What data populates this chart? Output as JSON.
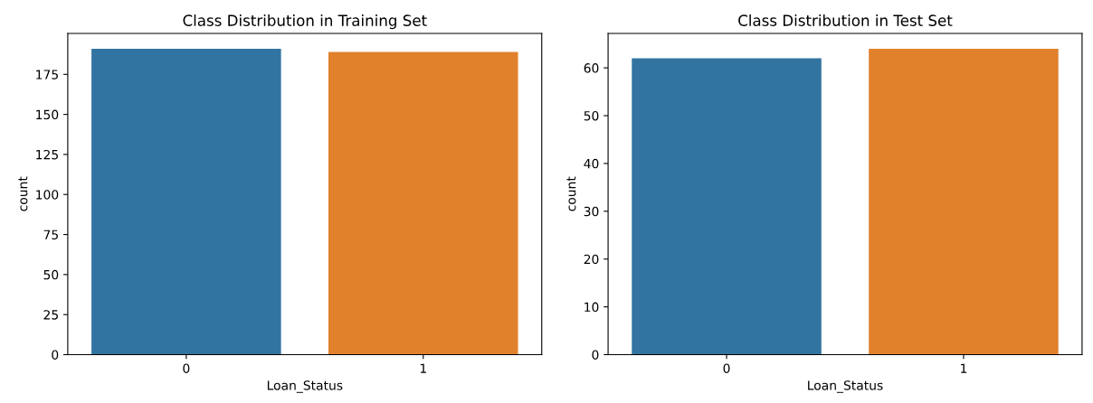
{
  "chart_data": [
    {
      "type": "bar",
      "title": "Class Distribution in Training Set",
      "xlabel": "Loan_Status",
      "ylabel": "count",
      "categories": [
        "0",
        "1"
      ],
      "values": [
        191,
        189
      ],
      "colors": [
        "#3274a1",
        "#e1812c"
      ],
      "ylim": [
        0,
        200.55
      ],
      "yticks": [
        0,
        25,
        50,
        75,
        100,
        125,
        150,
        175
      ]
    },
    {
      "type": "bar",
      "title": "Class Distribution in Test Set",
      "xlabel": "Loan_Status",
      "ylabel": "count",
      "categories": [
        "0",
        "1"
      ],
      "values": [
        62,
        64
      ],
      "colors": [
        "#3274a1",
        "#e1812c"
      ],
      "ylim": [
        0,
        67.2
      ],
      "yticks": [
        0,
        10,
        20,
        30,
        40,
        50,
        60
      ]
    }
  ]
}
